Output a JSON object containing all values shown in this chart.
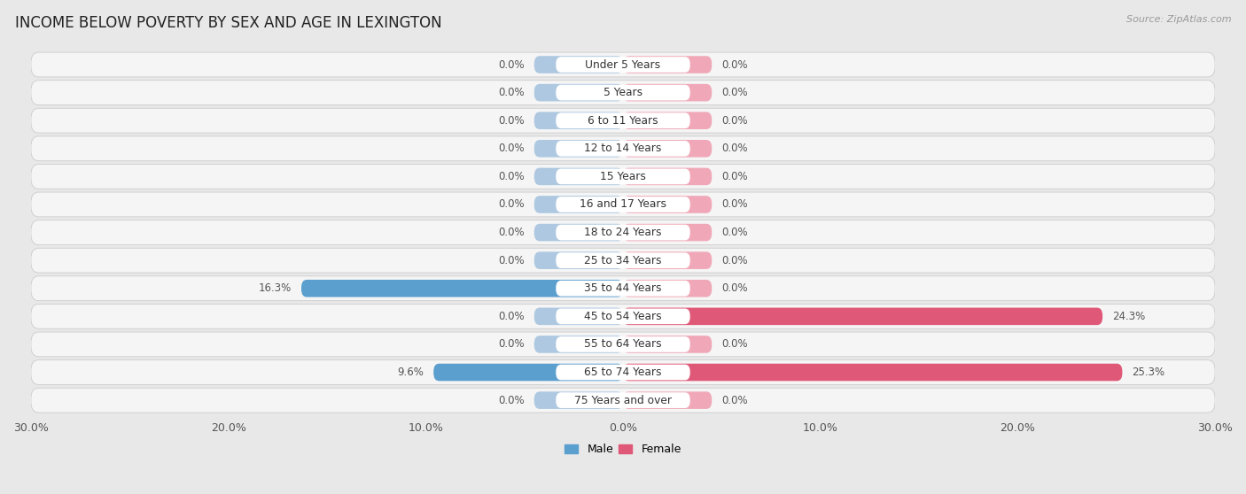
{
  "title": "INCOME BELOW POVERTY BY SEX AND AGE IN LEXINGTON",
  "source": "Source: ZipAtlas.com",
  "categories": [
    "Under 5 Years",
    "5 Years",
    "6 to 11 Years",
    "12 to 14 Years",
    "15 Years",
    "16 and 17 Years",
    "18 to 24 Years",
    "25 to 34 Years",
    "35 to 44 Years",
    "45 to 54 Years",
    "55 to 64 Years",
    "65 to 74 Years",
    "75 Years and over"
  ],
  "male_values": [
    0.0,
    0.0,
    0.0,
    0.0,
    0.0,
    0.0,
    0.0,
    0.0,
    16.3,
    0.0,
    0.0,
    9.6,
    0.0
  ],
  "female_values": [
    0.0,
    0.0,
    0.0,
    0.0,
    0.0,
    0.0,
    0.0,
    0.0,
    0.0,
    24.3,
    0.0,
    25.3,
    0.0
  ],
  "male_active_color": "#5b9fcf",
  "male_passive_color": "#adc8e0",
  "female_active_color": "#e05878",
  "female_passive_color": "#f0a8b8",
  "xlim": 30.0,
  "default_bar_width": 4.5,
  "background_color": "#e8e8e8",
  "row_bg_color": "#f5f5f5",
  "title_fontsize": 12,
  "label_fontsize": 9,
  "axis_label_fontsize": 9
}
